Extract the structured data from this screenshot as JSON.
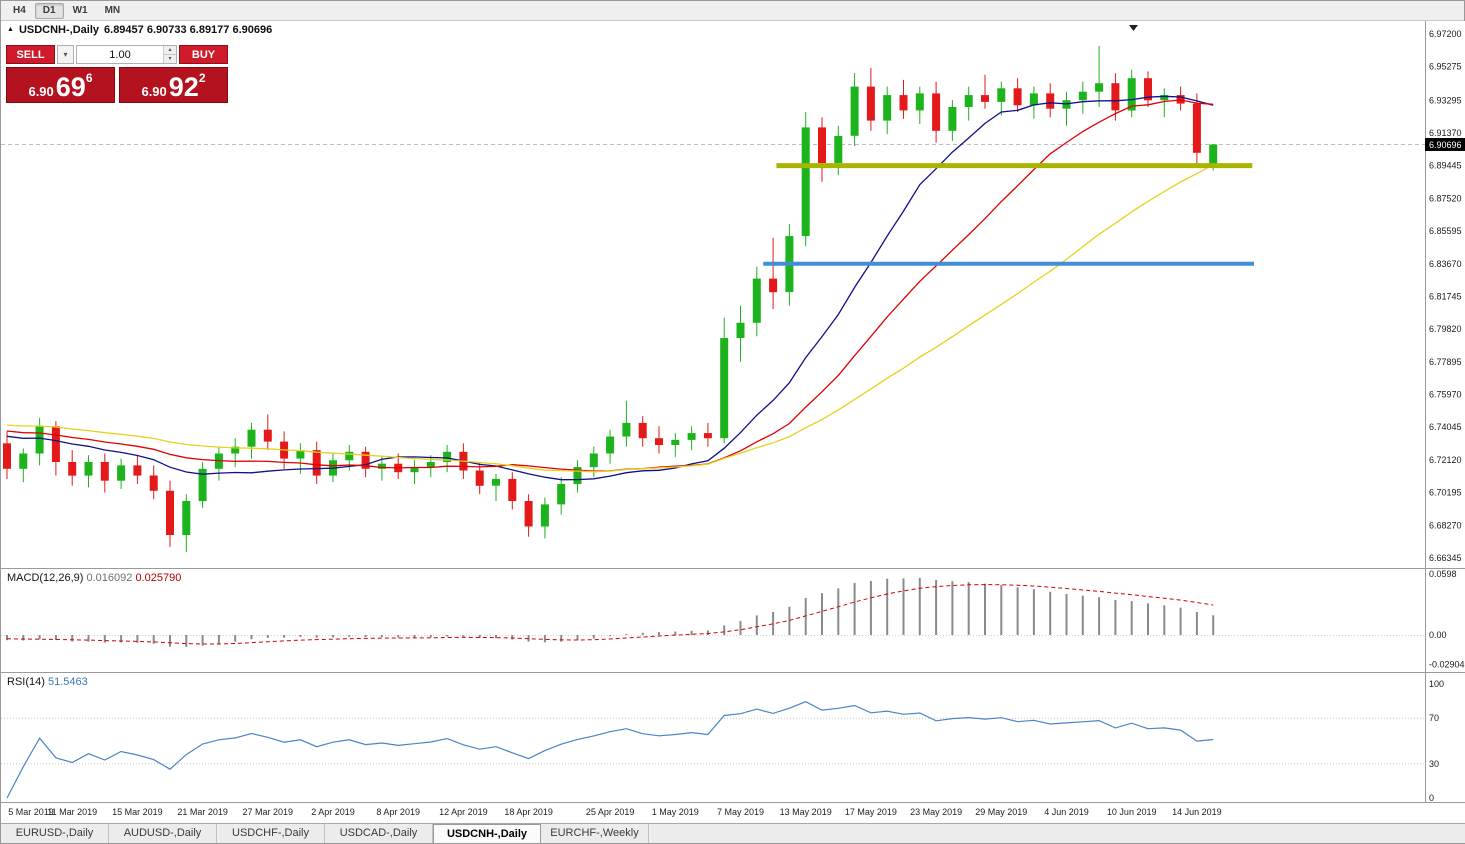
{
  "toolbar": {
    "timeframes": [
      "H4",
      "D1",
      "W1",
      "MN"
    ],
    "active_timeframe": "D1"
  },
  "header": {
    "symbol": "USDCNH-,Daily",
    "ohlc": "6.89457 6.90733 6.89177 6.90696"
  },
  "trade": {
    "sell_label": "SELL",
    "buy_label": "BUY",
    "volume": "1.00",
    "sell_price": {
      "prefix": "6.90",
      "big": "69",
      "sup": "6"
    },
    "buy_price": {
      "prefix": "6.90",
      "big": "92",
      "sup": "2"
    }
  },
  "macd_label": {
    "name": "MACD(12,26,9)",
    "v1": "0.016092",
    "v2": "0.025790"
  },
  "rsi_label": {
    "name": "RSI(14)",
    "v": "51.5463"
  },
  "tabs": {
    "items": [
      "EURUSD-,Daily",
      "AUDUSD-,Daily",
      "USDCHF-,Daily",
      "USDCAD-,Daily",
      "USDCNH-,Daily",
      "EURCHF-,Weekly"
    ],
    "active_index": 4
  },
  "colors": {
    "up": "#1db31d",
    "down": "#e41a1a",
    "ma_fast": "#10108a",
    "ma_mid": "#e00000",
    "ma_slow": "#e6d21e",
    "macd_hist": "#8a8a8a",
    "macd_signal": "#d40000",
    "rsi": "#4a84c8",
    "support_olive": "#a9b400",
    "support_blue": "#3f8ed6",
    "bid_line": "#bdbdbd",
    "button_red": "#cf1a2b",
    "tile_red": "#b5121f"
  },
  "chart_data": {
    "type": "candlestick",
    "title": "USDCNH-,Daily",
    "current_bid": 6.90696,
    "price_axis": {
      "labels": [
        "6.97200",
        "6.95275",
        "6.93295",
        "6.91370",
        "6.89445",
        "6.87520",
        "6.85595",
        "6.83670",
        "6.81745",
        "6.79820",
        "6.77895",
        "6.75970",
        "6.74045",
        "6.72120",
        "6.70195",
        "6.68270",
        "6.66345"
      ],
      "range": [
        6.66345,
        6.972
      ]
    },
    "x_labels": [
      {
        "label": "5 Mar 2019",
        "idx": 0
      },
      {
        "label": "11 Mar 2019",
        "idx": 4
      },
      {
        "label": "15 Mar 2019",
        "idx": 8
      },
      {
        "label": "21 Mar 2019",
        "idx": 12
      },
      {
        "label": "27 Mar 2019",
        "idx": 16
      },
      {
        "label": "2 Apr 2019",
        "idx": 20
      },
      {
        "label": "8 Apr 2019",
        "idx": 24
      },
      {
        "label": "12 Apr 2019",
        "idx": 28
      },
      {
        "label": "18 Apr 2019",
        "idx": 32
      },
      {
        "label": "25 Apr 2019",
        "idx": 37
      },
      {
        "label": "1 May 2019",
        "idx": 41
      },
      {
        "label": "7 May 2019",
        "idx": 45
      },
      {
        "label": "13 May 2019",
        "idx": 49
      },
      {
        "label": "17 May 2019",
        "idx": 53
      },
      {
        "label": "23 May 2019",
        "idx": 57
      },
      {
        "label": "29 May 2019",
        "idx": 61
      },
      {
        "label": "4 Jun 2019",
        "idx": 65
      },
      {
        "label": "10 Jun 2019",
        "idx": 69
      },
      {
        "label": "14 Jun 2019",
        "idx": 73
      }
    ],
    "candles": [
      [
        "Mar 5",
        6.731,
        6.738,
        6.71,
        6.716
      ],
      [
        "Mar 6",
        6.716,
        6.728,
        6.708,
        6.725
      ],
      [
        "Mar 7",
        6.725,
        6.746,
        6.718,
        6.741
      ],
      [
        "Mar 8",
        6.741,
        6.744,
        6.712,
        6.72
      ],
      [
        "Mar 11",
        6.72,
        6.727,
        6.706,
        6.712
      ],
      [
        "Mar 12",
        6.712,
        6.724,
        6.705,
        6.72
      ],
      [
        "Mar 13",
        6.72,
        6.725,
        6.702,
        6.709
      ],
      [
        "Mar 14",
        6.709,
        6.722,
        6.704,
        6.718
      ],
      [
        "Mar 15",
        6.718,
        6.724,
        6.707,
        6.712
      ],
      [
        "Mar 18",
        6.712,
        6.718,
        6.698,
        6.703
      ],
      [
        "Mar 19",
        6.703,
        6.709,
        6.67,
        6.677
      ],
      [
        "Mar 20",
        6.677,
        6.701,
        6.667,
        6.697
      ],
      [
        "Mar 21",
        6.697,
        6.72,
        6.693,
        6.716
      ],
      [
        "Mar 22",
        6.716,
        6.729,
        6.709,
        6.725
      ],
      [
        "Mar 25",
        6.725,
        6.734,
        6.717,
        6.729
      ],
      [
        "Mar 26",
        6.729,
        6.743,
        6.722,
        6.739
      ],
      [
        "Mar 27",
        6.739,
        6.748,
        6.727,
        6.732
      ],
      [
        "Mar 28",
        6.732,
        6.738,
        6.716,
        6.722
      ],
      [
        "Mar 29",
        6.722,
        6.731,
        6.713,
        6.727
      ],
      [
        "Apr 1",
        6.727,
        6.732,
        6.707,
        6.712
      ],
      [
        "Apr 2",
        6.712,
        6.725,
        6.708,
        6.721
      ],
      [
        "Apr 3",
        6.721,
        6.73,
        6.715,
        6.726
      ],
      [
        "Apr 4",
        6.726,
        6.729,
        6.711,
        6.716
      ],
      [
        "Apr 5",
        6.716,
        6.723,
        6.709,
        6.719
      ],
      [
        "Apr 8",
        6.719,
        6.725,
        6.71,
        6.714
      ],
      [
        "Apr 9",
        6.714,
        6.721,
        6.707,
        6.717
      ],
      [
        "Apr 10",
        6.717,
        6.724,
        6.711,
        6.72
      ],
      [
        "Apr 11",
        6.72,
        6.73,
        6.714,
        6.726
      ],
      [
        "Apr 12",
        6.726,
        6.731,
        6.71,
        6.715
      ],
      [
        "Apr 15",
        6.715,
        6.72,
        6.701,
        6.706
      ],
      [
        "Apr 16",
        6.706,
        6.713,
        6.697,
        6.71
      ],
      [
        "Apr 17",
        6.71,
        6.714,
        6.692,
        6.697
      ],
      [
        "Apr 18",
        6.697,
        6.701,
        6.676,
        6.682
      ],
      [
        "Apr 19",
        6.682,
        6.699,
        6.675,
        6.695
      ],
      [
        "Apr 22",
        6.695,
        6.711,
        6.689,
        6.707
      ],
      [
        "Apr 23",
        6.707,
        6.721,
        6.702,
        6.717
      ],
      [
        "Apr 24",
        6.717,
        6.729,
        6.711,
        6.725
      ],
      [
        "Apr 25",
        6.725,
        6.739,
        6.719,
        6.735
      ],
      [
        "Apr 26",
        6.735,
        6.756,
        6.729,
        6.743
      ],
      [
        "Apr 29",
        6.743,
        6.747,
        6.729,
        6.734
      ],
      [
        "Apr 30",
        6.734,
        6.741,
        6.725,
        6.73
      ],
      [
        "May 1",
        6.73,
        6.737,
        6.723,
        6.733
      ],
      [
        "May 2",
        6.733,
        6.741,
        6.727,
        6.737
      ],
      [
        "May 3",
        6.737,
        6.743,
        6.729,
        6.734
      ],
      [
        "May 6",
        6.734,
        6.805,
        6.731,
        6.793
      ],
      [
        "May 7",
        6.793,
        6.812,
        6.779,
        6.802
      ],
      [
        "May 8",
        6.802,
        6.835,
        6.794,
        6.828
      ],
      [
        "May 9",
        6.828,
        6.852,
        6.81,
        6.82
      ],
      [
        "May 10",
        6.82,
        6.86,
        6.812,
        6.853
      ],
      [
        "May 13",
        6.853,
        6.926,
        6.847,
        6.917
      ],
      [
        "May 14",
        6.917,
        6.923,
        6.885,
        6.896
      ],
      [
        "May 15",
        6.896,
        6.918,
        6.889,
        6.912
      ],
      [
        "May 16",
        6.912,
        6.949,
        6.906,
        6.941
      ],
      [
        "May 17",
        6.941,
        6.952,
        6.915,
        6.921
      ],
      [
        "May 20",
        6.921,
        6.941,
        6.913,
        6.936
      ],
      [
        "May 21",
        6.936,
        6.945,
        6.922,
        6.927
      ],
      [
        "May 22",
        6.927,
        6.941,
        6.919,
        6.937
      ],
      [
        "May 23",
        6.937,
        6.944,
        6.908,
        6.915
      ],
      [
        "May 24",
        6.915,
        6.933,
        6.909,
        6.929
      ],
      [
        "May 27",
        6.929,
        6.941,
        6.921,
        6.936
      ],
      [
        "May 28",
        6.936,
        6.948,
        6.928,
        6.932
      ],
      [
        "May 29",
        6.932,
        6.944,
        6.924,
        6.94
      ],
      [
        "May 30",
        6.94,
        6.946,
        6.926,
        6.93
      ],
      [
        "May 31",
        6.93,
        6.941,
        6.922,
        6.937
      ],
      [
        "Jun 3",
        6.937,
        6.943,
        6.923,
        6.928
      ],
      [
        "Jun 4",
        6.928,
        6.938,
        6.918,
        6.933
      ],
      [
        "Jun 5",
        6.933,
        6.944,
        6.925,
        6.938
      ],
      [
        "Jun 6",
        6.938,
        6.965,
        6.929,
        6.943
      ],
      [
        "Jun 7",
        6.943,
        6.949,
        6.921,
        6.927
      ],
      [
        "Jun 10",
        6.927,
        6.951,
        6.923,
        6.946
      ],
      [
        "Jun 11",
        6.946,
        6.95,
        6.929,
        6.933
      ],
      [
        "Jun 12",
        6.933,
        6.94,
        6.923,
        6.936
      ],
      [
        "Jun 13",
        6.936,
        6.941,
        6.927,
        6.931
      ],
      [
        "Jun 14",
        6.931,
        6.937,
        6.895,
        6.902
      ],
      [
        "Jun 17",
        6.89457,
        6.90733,
        6.89177,
        6.90696
      ]
    ],
    "overlays": [
      {
        "name": "ma-fast",
        "period": 13,
        "color_key": "ma_fast"
      },
      {
        "name": "ma-mid",
        "period": 21,
        "color_key": "ma_mid"
      },
      {
        "name": "ma-slow",
        "period": 34,
        "color_key": "ma_slow"
      }
    ],
    "objects": [
      {
        "type": "horizontal-line",
        "name": "support-line-olive",
        "price": 6.8945,
        "from_idx": 47.2,
        "to_idx": 76.4,
        "color_key": "support_olive",
        "width": 5
      },
      {
        "type": "horizontal-line",
        "name": "support-line-blue",
        "price": 6.8367,
        "from_idx": 46.4,
        "to_idx": 76.5,
        "color_key": "support_blue",
        "width": 4
      }
    ],
    "indicators": {
      "macd": {
        "label": "MACD(12,26,9)",
        "fast": 12,
        "slow": 26,
        "signal": 9,
        "value": "0.016092",
        "signal_value": "0.025790",
        "scale": [
          "0.0598",
          "0.00",
          "-0.029049"
        ]
      },
      "rsi": {
        "label": "RSI(14)",
        "period": 14,
        "value": "51.5463",
        "scale": [
          "100",
          "70",
          "30",
          "0"
        ]
      }
    }
  }
}
